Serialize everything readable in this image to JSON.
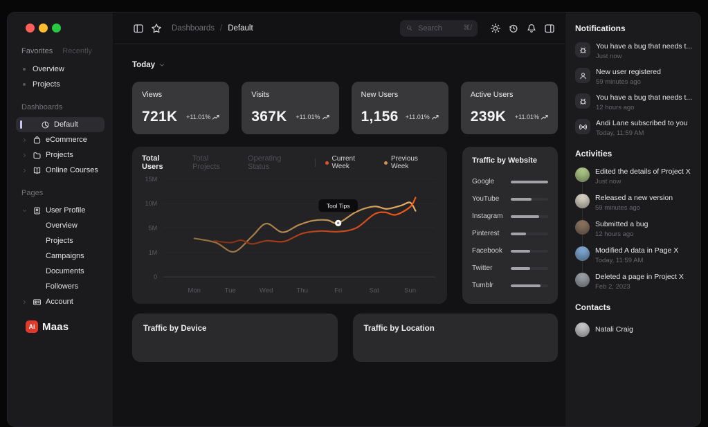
{
  "window": {
    "traffic_lights": [
      {
        "name": "close",
        "color": "#ff5f57"
      },
      {
        "name": "minimize",
        "color": "#febc2e"
      },
      {
        "name": "zoom",
        "color": "#28c840"
      }
    ]
  },
  "topbar": {
    "breadcrumb": {
      "section": "Dashboards",
      "separator": "/",
      "page": "Default"
    },
    "search": {
      "placeholder": "Search",
      "shortcut": "⌘/"
    }
  },
  "sidebar": {
    "tabs": [
      {
        "label": "Favorites",
        "active": true
      },
      {
        "label": "Recently",
        "active": false
      }
    ],
    "favorites": [
      {
        "label": "Overview"
      },
      {
        "label": "Projects"
      }
    ],
    "dashboards": {
      "label": "Dashboards",
      "items": [
        {
          "label": "Default",
          "icon": "pie-chart",
          "selected": true
        },
        {
          "label": "eCommerce",
          "icon": "shopping-bag",
          "selected": false
        },
        {
          "label": "Projects",
          "icon": "folder",
          "selected": false
        },
        {
          "label": "Online Courses",
          "icon": "book",
          "selected": false
        }
      ]
    },
    "pages": {
      "label": "Pages",
      "items": [
        {
          "label": "User Profile",
          "icon": "id-badge",
          "expanded": true,
          "children": [
            {
              "label": "Overview"
            },
            {
              "label": "Projects"
            },
            {
              "label": "Campaigns"
            },
            {
              "label": "Documents"
            },
            {
              "label": "Followers"
            }
          ]
        },
        {
          "label": "Account",
          "icon": "id-card",
          "expanded": false,
          "children": []
        }
      ]
    },
    "logo": {
      "mark": "Ai",
      "name": "Maas",
      "mark_color": "#e0392b"
    }
  },
  "main": {
    "period_selector": {
      "label": "Today"
    },
    "stats": [
      {
        "label": "Views",
        "value": "721K",
        "delta": "+11.01%"
      },
      {
        "label": "Visits",
        "value": "367K",
        "delta": "+11.01%"
      },
      {
        "label": "New Users",
        "value": "1,156",
        "delta": "+11.01%"
      },
      {
        "label": "Active Users",
        "value": "239K",
        "delta": "+11.01%"
      }
    ],
    "chart_card": {
      "tabs": [
        {
          "label": "Total Users",
          "active": true
        },
        {
          "label": "Total Projects",
          "active": false
        },
        {
          "label": "Operating Status",
          "active": false
        }
      ],
      "legend": [
        {
          "label": "Current Week",
          "color": "#e55326"
        },
        {
          "label": "Previous Week",
          "color": "#d1924d"
        }
      ]
    },
    "traffic_by_website": {
      "title": "Traffic by Website",
      "sites": [
        {
          "name": "Google",
          "share": 1.0
        },
        {
          "name": "YouTube",
          "share": 0.55
        },
        {
          "name": "Instagram",
          "share": 0.76
        },
        {
          "name": "Pinterest",
          "share": 0.41
        },
        {
          "name": "Facebook",
          "share": 0.52
        },
        {
          "name": "Twitter",
          "share": 0.52
        },
        {
          "name": "Tumblr",
          "share": 0.79
        }
      ]
    },
    "bottom_cards": [
      {
        "title": "Traffic by Device"
      },
      {
        "title": "Traffic by Location"
      }
    ]
  },
  "right_panel": {
    "notifications": {
      "title": "Notifications",
      "items": [
        {
          "icon": "bug",
          "text": "You have a bug that needs t...",
          "time": "Just now"
        },
        {
          "icon": "user",
          "text": "New user registered",
          "time": "59 minutes ago"
        },
        {
          "icon": "bug",
          "text": "You have a bug that needs t...",
          "time": "12 hours ago"
        },
        {
          "icon": "broadcast",
          "text": "Andi Lane subscribed to you",
          "time": "Today, 11:59 AM"
        }
      ]
    },
    "activities": {
      "title": "Activities",
      "items": [
        {
          "avatar_color": "#aec887",
          "text": "Edited the details of Project X",
          "time": "Just now"
        },
        {
          "avatar_color": "#d8d2c4",
          "text": "Released a new version",
          "time": "59 minutes ago"
        },
        {
          "avatar_color": "#8a7361",
          "text": "Submitted a bug",
          "time": "12 hours ago"
        },
        {
          "avatar_color": "#7fa8d2",
          "text": "Modified A data in Page X",
          "time": "Today, 11:59 AM"
        },
        {
          "avatar_color": "#9aa0a5",
          "text": "Deleted a page in Project X",
          "time": "Feb 2, 2023"
        }
      ]
    },
    "contacts": {
      "title": "Contacts",
      "items": [
        {
          "avatar_color": "#c9c9cc",
          "name": "Natali Craig"
        }
      ]
    }
  },
  "chart_data": {
    "type": "line",
    "title": "Total Users",
    "x_categories": [
      "Mon",
      "Tue",
      "Wed",
      "Thu",
      "Fri",
      "Sat",
      "Sun"
    ],
    "y_ticks": [
      "0",
      "1M",
      "5M",
      "10M",
      "15M"
    ],
    "y_tick_values": [
      0,
      1,
      5,
      10,
      15
    ],
    "unit": "millions of users",
    "grid": "horizontal",
    "legend_position": "top",
    "series": [
      {
        "name": "Current Week",
        "color_start": "#7d2d15",
        "color_end": "#f25a1d",
        "points": [
          [
            0.55,
            2.9
          ],
          [
            1.0,
            2.6
          ],
          [
            1.3,
            3.0
          ],
          [
            1.6,
            2.4
          ],
          [
            2.0,
            2.9
          ],
          [
            2.5,
            2.8
          ],
          [
            3.0,
            4.1
          ],
          [
            3.5,
            4.5
          ],
          [
            4.0,
            4.4
          ],
          [
            4.5,
            5.0
          ],
          [
            5.0,
            7.8
          ],
          [
            5.3,
            8.2
          ],
          [
            5.6,
            7.7
          ],
          [
            6.0,
            9.3
          ],
          [
            6.15,
            11.2
          ]
        ]
      },
      {
        "name": "Previous Week",
        "color_start": "#8a6a3e",
        "color_end": "#e7ae62",
        "points": [
          [
            0,
            3.3
          ],
          [
            0.6,
            2.6
          ],
          [
            1.1,
            1.1
          ],
          [
            1.6,
            3.6
          ],
          [
            2.0,
            5.9
          ],
          [
            2.45,
            4.3
          ],
          [
            2.9,
            5.6
          ],
          [
            3.3,
            6.5
          ],
          [
            3.7,
            6.6
          ],
          [
            4.0,
            6.0
          ],
          [
            4.5,
            8.3
          ],
          [
            5.0,
            9.4
          ],
          [
            5.35,
            8.9
          ],
          [
            5.75,
            9.6
          ],
          [
            6.0,
            10.2
          ],
          [
            6.15,
            8.5
          ]
        ]
      }
    ],
    "tooltip": {
      "label": "Tool Tips",
      "series": "Previous Week",
      "x": 4.0,
      "y": 6.0
    }
  }
}
